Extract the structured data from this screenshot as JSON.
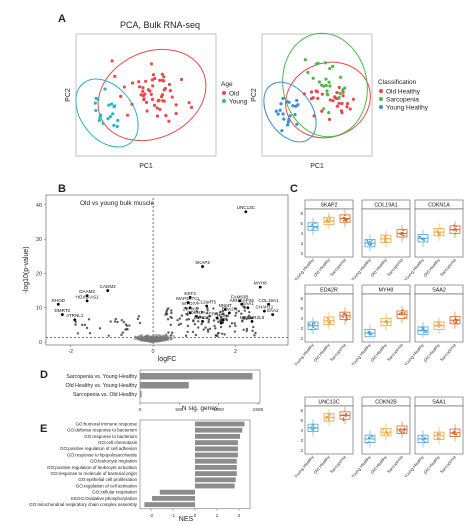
{
  "panels": {
    "A": {
      "letter": "A",
      "title": "PCA, Bulk RNA-seq",
      "left": {
        "xlabel": "PC1",
        "ylabel": "PC2",
        "legend_title": "Age",
        "legend": [
          {
            "name": "Old",
            "color": "#e8494b"
          },
          {
            "name": "Young",
            "color": "#2bb5bf"
          }
        ]
      },
      "right": {
        "xlabel": "PC1",
        "ylabel": "PC2",
        "legend_title": "Classification",
        "legend": [
          {
            "name": "Old Healthy",
            "color": "#e8494b"
          },
          {
            "name": "Sarcopenia",
            "color": "#4fb848"
          },
          {
            "name": "Young Healthy",
            "color": "#3a8fd0"
          }
        ]
      }
    },
    "B": {
      "letter": "B",
      "subtitle": "Old vs young bulk muscle",
      "xlabel": "logFC",
      "ylabel": "-log10(p-value)",
      "yticks": [
        0,
        10,
        20,
        30,
        40
      ],
      "xticks": [
        -2,
        0,
        2
      ],
      "xlim": [
        -2.5,
        3.2
      ],
      "ylim": [
        0,
        42
      ],
      "labeled_genes": [
        {
          "gene": "UNC13C",
          "x": 2.25,
          "y": 38
        },
        {
          "gene": "SKAP2",
          "x": 1.2,
          "y": 22
        },
        {
          "gene": "MYH8",
          "x": 2.6,
          "y": 16
        },
        {
          "gene": "EDA2R",
          "x": 1.85,
          "y": 8.5
        },
        {
          "gene": "FAM83B",
          "x": 2.1,
          "y": 12
        },
        {
          "gene": "ARHGAP36",
          "x": 2.15,
          "y": 11
        },
        {
          "gene": "SAA1",
          "x": 2.3,
          "y": 10
        },
        {
          "gene": "COL19A1",
          "x": 2.8,
          "y": 11
        },
        {
          "gene": "CHAH11",
          "x": 2.7,
          "y": 9
        },
        {
          "gene": "SAA2",
          "x": 2.9,
          "y": 8
        },
        {
          "gene": "MTRNR2L8",
          "x": 2.4,
          "y": 6
        },
        {
          "gene": "EEF2",
          "x": 0.9,
          "y": 13
        },
        {
          "gene": "MAP3K7CL",
          "x": 0.85,
          "y": 11.5
        },
        {
          "gene": "C12orf75",
          "x": 1.3,
          "y": 10.5
        },
        {
          "gene": "MYO7A",
          "x": 0.9,
          "y": 10
        },
        {
          "gene": "ZFHX3",
          "x": 0.9,
          "y": 8.5
        },
        {
          "gene": "CDKN1A",
          "x": 1.05,
          "y": 7.5
        },
        {
          "gene": "ERRFI1",
          "x": 1.55,
          "y": 7
        },
        {
          "gene": "LRRC37",
          "x": 1.2,
          "y": 6
        },
        {
          "gene": "AS1",
          "x": 1.65,
          "y": 5.5
        },
        {
          "gene": "HCN4",
          "x": 1.7,
          "y": 6.5
        },
        {
          "gene": "NNMT",
          "x": 1.75,
          "y": 9.5
        },
        {
          "gene": "CADM2",
          "x": -1.1,
          "y": 15
        },
        {
          "gene": "DAAM2",
          "x": -1.6,
          "y": 13.5
        },
        {
          "gene": "HOXB-AS1",
          "x": -1.6,
          "y": 12
        },
        {
          "gene": "RHOD",
          "x": -2.3,
          "y": 11
        },
        {
          "gene": "DMRT2",
          "x": -2.2,
          "y": 8
        },
        {
          "gene": "ATRNL1",
          "x": -1.9,
          "y": 6.5
        }
      ]
    },
    "C": {
      "letter": "C",
      "groups": [
        "Young Healthy",
        "Old Healthy",
        "Sarcopenia"
      ],
      "group_colors": [
        "#4ea3d8",
        "#e9a641",
        "#d4662c"
      ],
      "genes": [
        "SKAP2",
        "COL19A1",
        "CDKN1A",
        "EDA2R",
        "MYH8",
        "SAA2",
        "UNC13C",
        "CDKN2B",
        "SAA1"
      ],
      "row_yticks": [
        [
          "2",
          "3",
          "4",
          "5",
          "6"
        ],
        [
          "2",
          "3",
          "4",
          "5",
          "6"
        ],
        [
          "2",
          "3",
          "4",
          "5",
          "6"
        ]
      ]
    },
    "D": {
      "letter": "D",
      "xlabel": "N sig. genes",
      "xticks": [
        0,
        500,
        1000,
        1500
      ],
      "chart_data": {
        "type": "bar",
        "categories": [
          "Sarcopenia vs. Young Healthy",
          "Old Healthy vs. Young Healthy",
          "Sarcopenia vs. Old Healthy"
        ],
        "values": [
          1430,
          620,
          20
        ],
        "xlim": [
          0,
          1500
        ]
      }
    },
    "E": {
      "letter": "E",
      "xlabel": "NES",
      "xticks": [
        -2,
        -1,
        0,
        1,
        2
      ],
      "chart_data": {
        "type": "bar",
        "categories": [
          "GO:humoral immune response",
          "GO:defense response to bacterium",
          "GO:response to bacterium",
          "GO:cell chemotaxis",
          "GO:positive regulation of cell adhesion",
          "GO:response to lipopolysaccharide",
          "GO:leukocyte migration",
          "GO:positive regulation of leukocyte activation",
          "GO:response to molecule of bacterial origin",
          "GO:epithelial cell proliferation",
          "GO:regulation of cell activation",
          "GO:cellular respiration",
          "KEGG:Oxidative phosphorylation",
          "GO:mitochondrial respiratory chain complex assembly"
        ],
        "values": [
          2.25,
          2.15,
          2.05,
          1.95,
          1.95,
          1.95,
          1.9,
          1.9,
          1.9,
          1.85,
          1.8,
          -1.6,
          -1.95,
          -2.3
        ],
        "xlim": [
          -2.5,
          2.5
        ]
      }
    }
  }
}
